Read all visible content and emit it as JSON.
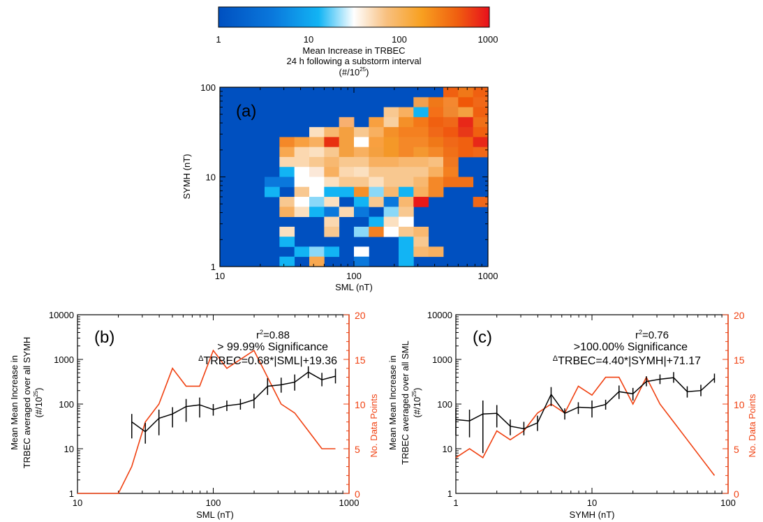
{
  "colorbar": {
    "tick_labels": [
      "1",
      "10",
      "100",
      "1000"
    ],
    "title_lines": [
      "Mean Increase in TRBEC",
      "24 h following a substorm interval",
      "(#/10",
      "25",
      ")"
    ]
  },
  "chart_data": [
    {
      "type": "heatmap",
      "panel_label": "(a)",
      "xlabel": "SML (nT)",
      "ylabel": "SYMH (nT)",
      "xscale": "log",
      "yscale": "log",
      "xlim": [
        10,
        1000
      ],
      "ylim": [
        1,
        100
      ],
      "x_tick_labels": [
        "10",
        "100",
        "1000"
      ],
      "y_tick_labels": [
        "1",
        "10",
        "100"
      ],
      "colorscale": {
        "type": "log",
        "range": [
          1,
          1000
        ],
        "colors": [
          "#0050c0",
          "#12b4f4",
          "#ffffff",
          "#f8a040",
          "#f07000",
          "#e8101c"
        ]
      },
      "background_value": 1,
      "cells": [
        [
          0,
          1,
          1.5,
          2
        ],
        [
          0,
          2,
          1.3,
          1.6
        ],
        [
          0,
          3,
          1,
          40
        ],
        [
          0,
          4,
          0,
          70
        ],
        [
          0,
          9,
          3,
          2
        ],
        [
          0,
          13,
          10,
          20
        ],
        [
          1,
          2,
          2,
          3
        ],
        [
          0,
          2,
          4,
          600
        ],
        [
          2,
          3,
          2,
          2
        ],
        [
          3,
          3,
          1,
          3
        ],
        [
          2,
          4,
          1.2,
          5
        ],
        [
          2,
          5,
          10,
          40
        ],
        [
          2,
          6,
          20,
          80
        ],
        [
          2,
          7,
          30,
          50
        ],
        [
          2,
          8,
          60,
          100
        ],
        [
          3,
          9,
          80,
          200
        ],
        [
          3,
          10,
          100,
          300
        ],
        [
          3,
          11,
          200,
          350
        ],
        [
          3,
          12,
          400,
          500
        ],
        [
          3,
          13,
          500,
          600
        ],
        [
          4,
          9,
          150,
          300
        ],
        [
          4,
          10,
          300,
          600
        ],
        [
          4,
          11,
          400,
          700
        ],
        [
          4,
          12,
          700,
          900
        ],
        [
          5,
          10,
          800,
          1000
        ],
        [
          5,
          11,
          500,
          800
        ],
        [
          6,
          8,
          40,
          150
        ],
        [
          6,
          9,
          150,
          250
        ],
        [
          6,
          10,
          400,
          600
        ],
        [
          6,
          11,
          300,
          500
        ],
        [
          6,
          12,
          600,
          800
        ],
        [
          6,
          13,
          300,
          500
        ],
        [
          7,
          7,
          20,
          60
        ],
        [
          7,
          8,
          60,
          100
        ],
        [
          7,
          9,
          100,
          150
        ],
        [
          7,
          10,
          200,
          300
        ],
        [
          7,
          11,
          300,
          500
        ],
        [
          7,
          12,
          500,
          700
        ],
        [
          7,
          13,
          700,
          900
        ],
        [
          8,
          6,
          20,
          50
        ],
        [
          8,
          7,
          40,
          80
        ],
        [
          8,
          8,
          80,
          150
        ],
        [
          8,
          9,
          100,
          200
        ],
        [
          8,
          10,
          150,
          300
        ],
        [
          8,
          11,
          200,
          400
        ],
        [
          8,
          12,
          300,
          500
        ],
        [
          8,
          13,
          800,
          1000
        ],
        [
          9,
          5,
          30,
          60
        ],
        [
          9,
          6,
          40,
          80
        ],
        [
          9,
          7,
          60,
          120
        ],
        [
          9,
          8,
          90,
          150
        ],
        [
          9,
          9,
          150,
          250
        ],
        [
          9,
          10,
          200,
          300
        ],
        [
          9,
          11,
          300,
          500
        ],
        [
          9,
          12,
          400,
          600
        ],
        [
          10,
          4,
          30,
          60
        ],
        [
          10,
          5,
          40,
          70
        ],
        [
          10,
          6,
          50,
          90
        ],
        [
          10,
          7,
          80,
          100
        ],
        [
          10,
          8,
          100,
          130
        ],
        [
          10,
          9,
          150,
          200
        ],
        [
          10,
          10,
          200,
          300
        ],
        [
          10,
          11,
          300,
          400
        ],
        [
          11,
          4,
          20,
          40
        ],
        [
          11,
          5,
          30,
          50
        ],
        [
          11,
          6,
          40,
          60
        ],
        [
          11,
          7,
          60,
          90
        ],
        [
          11,
          8,
          90,
          120
        ],
        [
          11,
          9,
          120,
          160
        ],
        [
          11,
          10,
          150,
          200
        ],
        [
          11,
          11,
          200,
          250
        ],
        [
          12,
          3,
          20,
          40
        ],
        [
          12,
          4,
          30,
          50
        ],
        [
          12,
          5,
          40,
          60
        ],
        [
          12,
          6,
          50,
          80
        ],
        [
          12,
          7,
          70,
          100
        ],
        [
          12,
          8,
          100,
          140
        ],
        [
          12,
          9,
          130,
          170
        ],
        [
          12,
          10,
          160,
          200
        ],
        [
          13,
          3,
          15,
          30
        ],
        [
          13,
          4,
          20,
          40
        ],
        [
          13,
          5,
          30,
          50
        ],
        [
          13,
          6,
          40,
          60
        ],
        [
          13,
          7,
          50,
          80
        ],
        [
          13,
          8,
          70,
          100
        ],
        [
          13,
          9,
          90,
          130
        ],
        [
          13,
          10,
          120,
          160
        ],
        [
          14,
          4,
          20,
          40
        ],
        [
          14,
          5,
          25,
          45
        ],
        [
          14,
          6,
          35,
          55
        ],
        [
          14,
          7,
          45,
          65
        ],
        [
          14,
          8,
          55,
          85
        ],
        [
          14,
          9,
          70,
          100
        ],
        [
          14,
          10,
          90,
          120
        ],
        [
          15,
          4,
          15,
          30
        ],
        [
          15,
          5,
          20,
          40
        ],
        [
          15,
          6,
          30,
          50
        ],
        [
          15,
          7,
          40,
          60
        ],
        [
          15,
          8,
          50,
          70
        ],
        [
          15,
          9,
          60,
          90
        ],
        [
          15,
          10,
          80,
          110
        ]
      ],
      "bands_note": "cells are [row_from_top, col, value_lo, value_hi]"
    },
    {
      "type": "line",
      "panel_label": "(b)",
      "annotation_lines": [
        "r²=0.88",
        "> 99.99% Significance",
        "ΔTRBEC=0.68*|SML|+19.36"
      ],
      "r2_prefix": "r",
      "r2_value": "=0.88",
      "significance": "> 99.99% Significance",
      "fit_prefix": "Δ",
      "fit_text": "TRBEC=0.68*|SML|+19.36",
      "xlabel": "SML (nT)",
      "ylabel_lines": [
        "Mean Mean Increase in",
        "TRBEC averaged over all SYMH",
        "(#/10",
        "25",
        ")"
      ],
      "y2label": "No. Data Points",
      "xscale": "log",
      "xlim": [
        10,
        1000
      ],
      "x_tick_labels": [
        "10",
        "100",
        "1000"
      ],
      "yscale": "log",
      "ylim": [
        1,
        10000
      ],
      "y_tick_labels": [
        "1",
        "10",
        "100",
        "1000",
        "10000"
      ],
      "y2lim": [
        0,
        20
      ],
      "y2_tick_labels": [
        "0",
        "5",
        "10",
        "15",
        "20"
      ],
      "series": [
        {
          "axis": "left",
          "color": "#000000",
          "x": [
            25.1,
            31.6,
            39.8,
            50.1,
            63.1,
            79.4,
            100,
            125.9,
            158.5,
            199.5,
            251.2,
            316.2,
            398.1,
            501.2,
            631,
            794.3
          ],
          "y": [
            40,
            24,
            48,
            60,
            88,
            96,
            75,
            92,
            100,
            125,
            250,
            270,
            310,
            520,
            350,
            420
          ],
          "err_lo": [
            17,
            13,
            20,
            30,
            40,
            50,
            55,
            70,
            75,
            80,
            160,
            180,
            200,
            380,
            250,
            290
          ],
          "err_hi": [
            60,
            38,
            75,
            85,
            130,
            140,
            100,
            120,
            130,
            170,
            380,
            390,
            460,
            700,
            500,
            620
          ]
        },
        {
          "axis": "right",
          "color": "#f04010",
          "x": [
            10,
            12.6,
            15.8,
            20,
            25.1,
            31.6,
            39.8,
            50.1,
            63.1,
            79.4,
            100,
            125.9,
            158.5,
            199.5,
            251.2,
            316.2,
            398.1,
            501.2,
            631,
            794.3
          ],
          "y": [
            0,
            0,
            0,
            0,
            3,
            8,
            10,
            14,
            12,
            12,
            16,
            14,
            15,
            16,
            13,
            10,
            9,
            7,
            5,
            5
          ]
        }
      ]
    },
    {
      "type": "line",
      "panel_label": "(c)",
      "annotation_lines": [
        "r²=0.76",
        ">100.00% Significance",
        "ΔTRBEC=4.40*|SYMH|+71.17"
      ],
      "r2_prefix": "r",
      "r2_value": "=0.76",
      "significance": ">100.00% Significance",
      "fit_prefix": "Δ",
      "fit_text": "TRBEC=4.40*|SYMH|+71.17",
      "xlabel": "SYMH (nT)",
      "ylabel_lines": [
        "Mean Mean Increase in",
        "TRBEC averaged over all SML",
        "(#/10",
        "25",
        ")"
      ],
      "y2label": "No. Data Points",
      "xscale": "log",
      "xlim": [
        1,
        100
      ],
      "x_tick_labels": [
        "1",
        "10",
        "100"
      ],
      "yscale": "log",
      "ylim": [
        1,
        10000
      ],
      "y_tick_labels": [
        "1",
        "10",
        "100",
        "1000",
        "10000"
      ],
      "y2lim": [
        0,
        20
      ],
      "y2_tick_labels": [
        "0",
        "5",
        "10",
        "15",
        "20"
      ],
      "series": [
        {
          "axis": "left",
          "color": "#000000",
          "x": [
            1,
            1.26,
            1.58,
            2,
            2.51,
            3.16,
            3.98,
            5.01,
            6.31,
            7.94,
            10,
            12.6,
            15.8,
            20,
            25.1,
            31.6,
            39.8,
            50.1,
            63.1,
            79.4
          ],
          "y": [
            45,
            42,
            60,
            62,
            32,
            28,
            38,
            165,
            62,
            85,
            82,
            98,
            190,
            170,
            320,
            360,
            390,
            190,
            200,
            380
          ],
          "err_lo": [
            20,
            18,
            8,
            30,
            20,
            20,
            25,
            90,
            45,
            60,
            50,
            75,
            130,
            120,
            250,
            280,
            300,
            140,
            150,
            300
          ],
          "err_hi": [
            80,
            75,
            120,
            95,
            45,
            40,
            55,
            240,
            80,
            110,
            120,
            125,
            260,
            230,
            420,
            460,
            520,
            250,
            270,
            480
          ]
        },
        {
          "axis": "right",
          "color": "#f04010",
          "x": [
            1,
            1.26,
            1.58,
            2,
            2.51,
            3.16,
            3.98,
            5.01,
            6.31,
            7.94,
            10,
            12.6,
            15.8,
            20,
            25.1,
            31.6,
            39.8,
            50.1,
            63.1,
            79.4
          ],
          "y": [
            4,
            5,
            4,
            7,
            6,
            7,
            9,
            10,
            9,
            12,
            11,
            13,
            13,
            10,
            13,
            10,
            8,
            6,
            4,
            2
          ]
        }
      ]
    }
  ]
}
